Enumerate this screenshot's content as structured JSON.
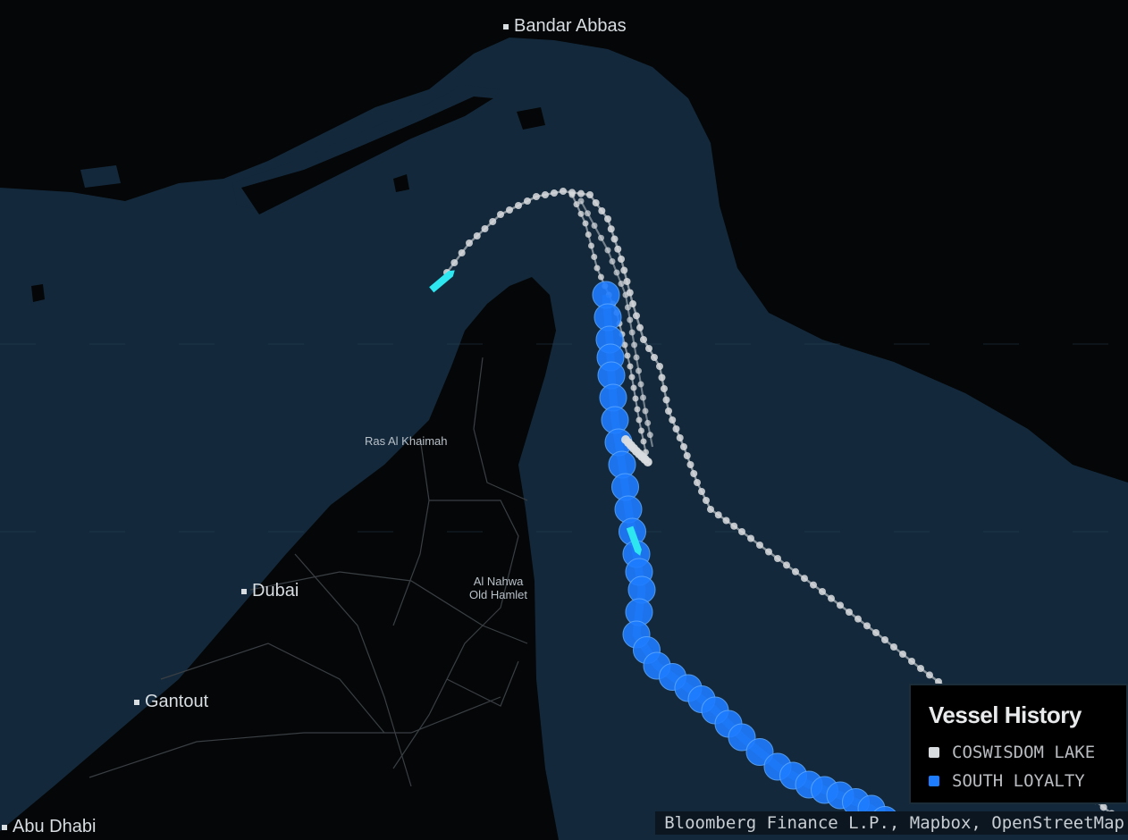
{
  "map": {
    "places": [
      {
        "name": "Bandar Abbas"
      },
      {
        "name": "Ras Al Khaimah"
      },
      {
        "name": "Dubai"
      },
      {
        "name": "Al Nahwa",
        "line2": "Old Hamlet"
      },
      {
        "name": "Gantout"
      },
      {
        "name": "Abu Dhabi"
      }
    ],
    "colors": {
      "sea": "#13293b",
      "land": "#050607",
      "coswisdom": "#d9dcdf",
      "south_loyalty": "#1e7cff",
      "current_position": "#2ee6f0"
    }
  },
  "legend": {
    "title": "Vessel History",
    "items": [
      {
        "label": "COSWISDOM LAKE",
        "color": "#d9dcdf"
      },
      {
        "label": "SOUTH LOYALTY",
        "color": "#1e7cff"
      }
    ]
  },
  "attribution": "Bloomberg Finance L.P., Mapbox, OpenStreetMap"
}
